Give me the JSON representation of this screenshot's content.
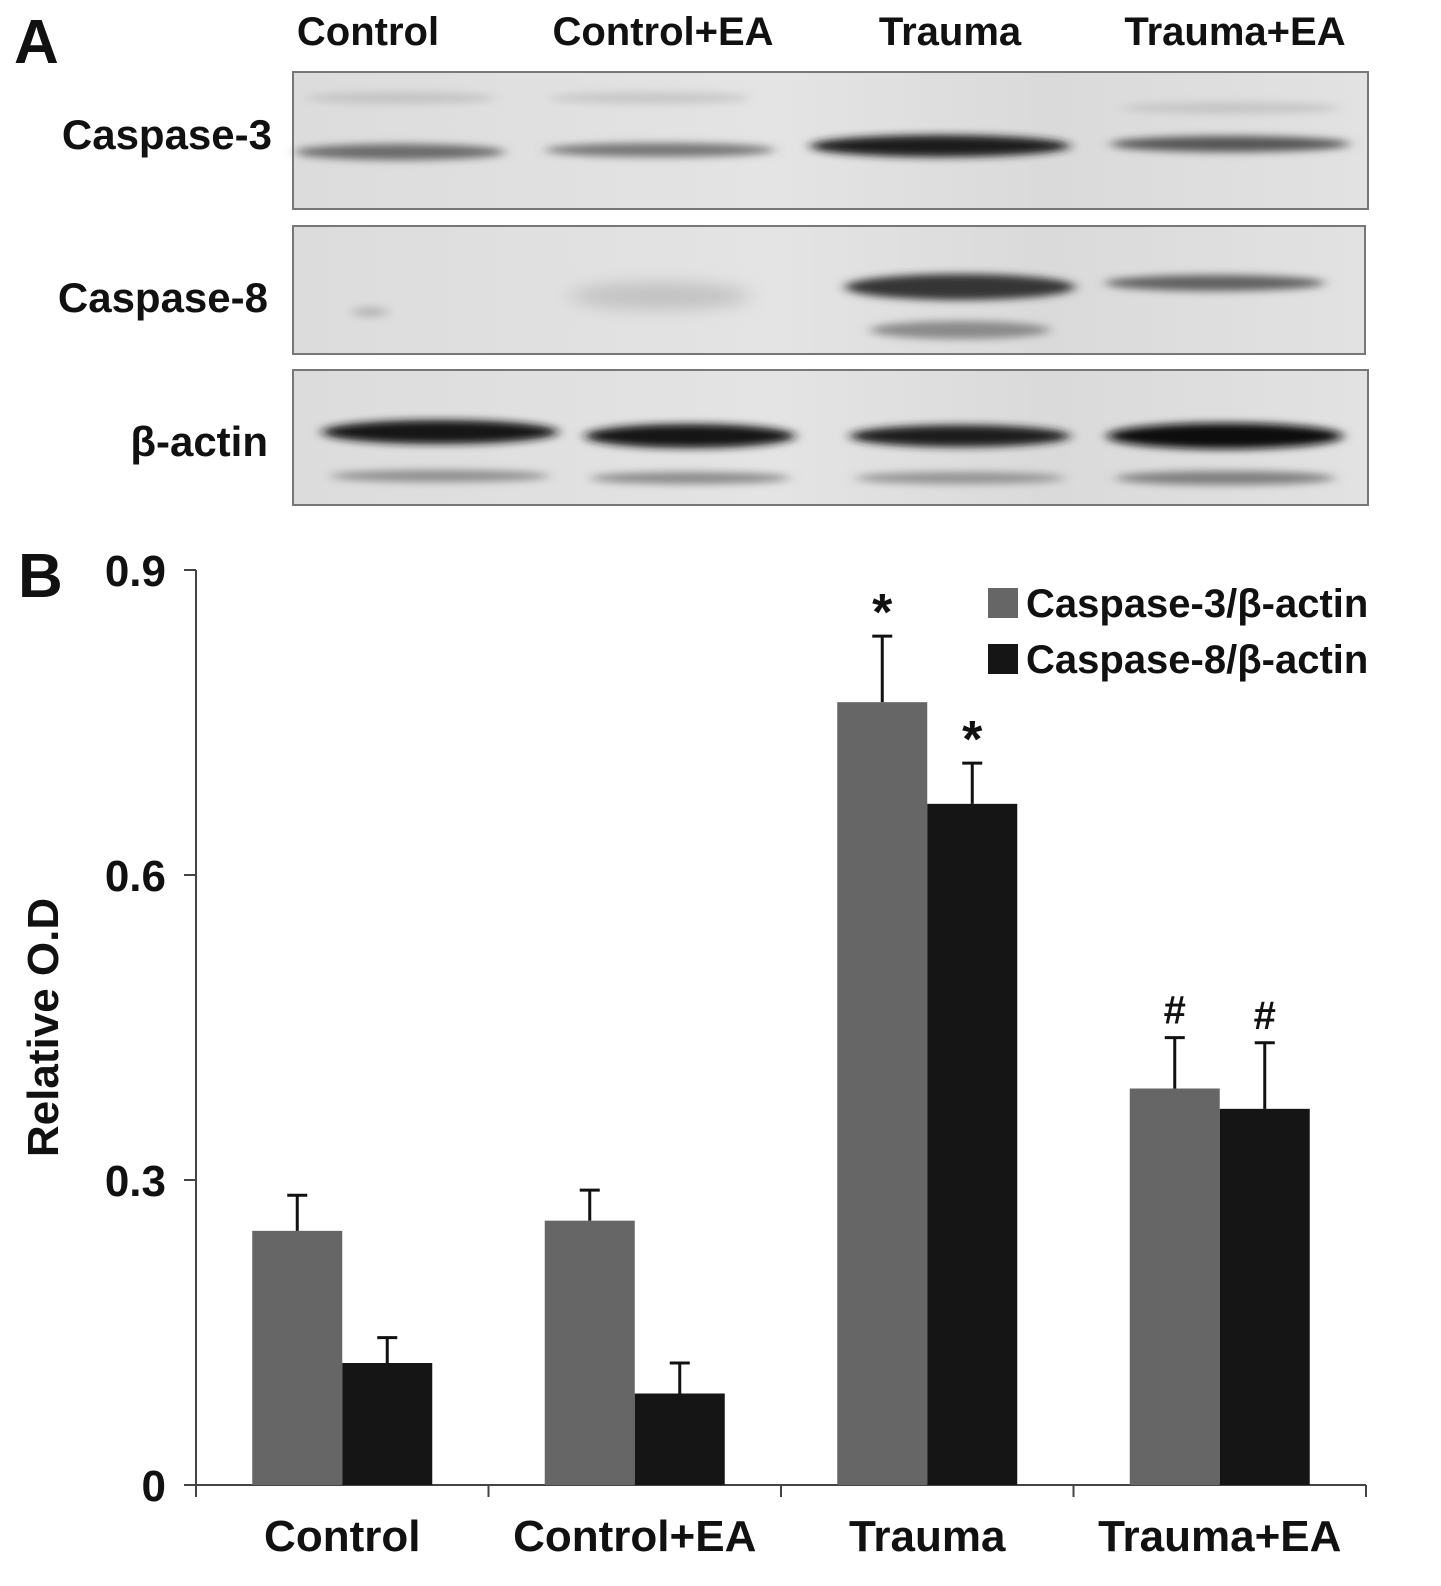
{
  "panel_a": {
    "letter": "A",
    "lanes": [
      "Control",
      "Control+EA",
      "Trauma",
      "Trauma+EA"
    ],
    "rows": [
      {
        "label": "Caspase-3"
      },
      {
        "label": "Caspase-8"
      },
      {
        "label": "β-actin"
      }
    ]
  },
  "panel_b": {
    "letter": "B"
  },
  "chart_data": {
    "type": "bar",
    "categories": [
      "Control",
      "Control+EA",
      "Trauma",
      "Trauma+EA"
    ],
    "series": [
      {
        "name": "Caspase-3/β-actin",
        "color": "#666666",
        "values": [
          0.25,
          0.26,
          0.77,
          0.39
        ],
        "errors": [
          0.035,
          0.03,
          0.065,
          0.05
        ],
        "annotations": [
          "",
          "",
          "*",
          "#"
        ]
      },
      {
        "name": "Caspase-8/β-actin",
        "color": "#151515",
        "values": [
          0.12,
          0.09,
          0.67,
          0.37
        ],
        "errors": [
          0.025,
          0.03,
          0.04,
          0.065
        ],
        "annotations": [
          "",
          "",
          "*",
          "#"
        ]
      }
    ],
    "ylabel": "Relative O.D",
    "xlabel": "",
    "ylim": [
      0,
      0.9
    ],
    "yticks": [
      "0",
      "0.3",
      "0.6",
      "0.9"
    ],
    "legend_position": "top-right",
    "grid": false
  }
}
